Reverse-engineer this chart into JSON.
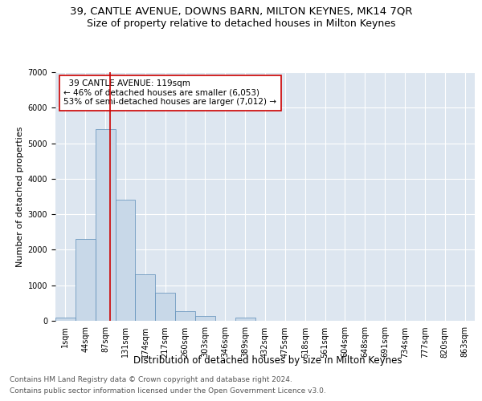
{
  "title1": "39, CANTLE AVENUE, DOWNS BARN, MILTON KEYNES, MK14 7QR",
  "title2": "Size of property relative to detached houses in Milton Keynes",
  "xlabel": "Distribution of detached houses by size in Milton Keynes",
  "ylabel": "Number of detached properties",
  "footnote1": "Contains HM Land Registry data © Crown copyright and database right 2024.",
  "footnote2": "Contains public sector information licensed under the Open Government Licence v3.0.",
  "annotation_line1": "  39 CANTLE AVENUE: 119sqm",
  "annotation_line2": "← 46% of detached houses are smaller (6,053)",
  "annotation_line3": "53% of semi-detached houses are larger (7,012) →",
  "bar_color": "#c8d8e8",
  "bar_edge_color": "#5b8db8",
  "annotation_box_edge": "#cc0000",
  "vline_color": "#cc0000",
  "background_color": "#dde6f0",
  "categories": [
    "1sqm",
    "44sqm",
    "87sqm",
    "131sqm",
    "174sqm",
    "217sqm",
    "260sqm",
    "303sqm",
    "346sqm",
    "389sqm",
    "432sqm",
    "475sqm",
    "518sqm",
    "561sqm",
    "604sqm",
    "648sqm",
    "691sqm",
    "734sqm",
    "777sqm",
    "820sqm",
    "863sqm"
  ],
  "values": [
    100,
    2300,
    5400,
    3400,
    1300,
    800,
    280,
    130,
    10,
    90,
    0,
    0,
    0,
    0,
    0,
    0,
    0,
    0,
    0,
    0,
    0
  ],
  "ylim": [
    0,
    7000
  ],
  "yticks": [
    0,
    1000,
    2000,
    3000,
    4000,
    5000,
    6000,
    7000
  ],
  "vline_x": 2.74,
  "title1_fontsize": 9.5,
  "title2_fontsize": 9,
  "xlabel_fontsize": 8.5,
  "ylabel_fontsize": 8,
  "tick_fontsize": 7,
  "annotation_fontsize": 7.5,
  "footnote_fontsize": 6.5
}
